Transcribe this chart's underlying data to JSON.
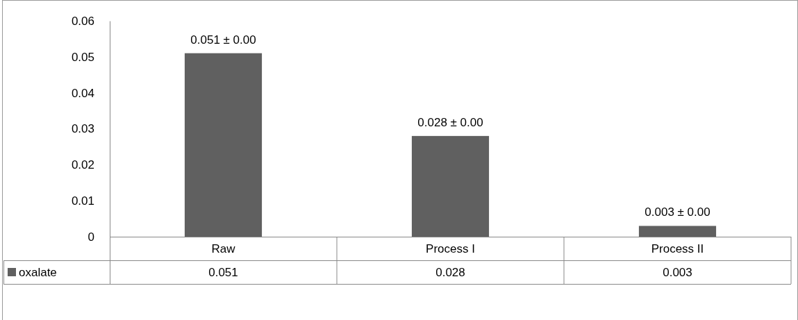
{
  "chart_data": {
    "type": "bar",
    "categories": [
      "Raw",
      "Process I",
      "Process II"
    ],
    "series": [
      {
        "name": "oxalate",
        "color": "#606060",
        "values": [
          0.051,
          0.028,
          0.003
        ]
      }
    ],
    "annotations": [
      {
        "text": "0.051 ± 0.00",
        "x": "Raw",
        "y": 0.051
      },
      {
        "text": "0.028 ± 0.00",
        "x": "Process I",
        "y": 0.028
      },
      {
        "text": "0.003 ± 0.00",
        "x": "Process II",
        "y": 0.003
      }
    ],
    "ylim": [
      0,
      0.06
    ],
    "yticks": [
      0,
      0.01,
      0.02,
      0.03,
      0.04,
      0.05,
      0.06
    ],
    "grid": false,
    "legend": "bottom left",
    "data_labels": true
  }
}
